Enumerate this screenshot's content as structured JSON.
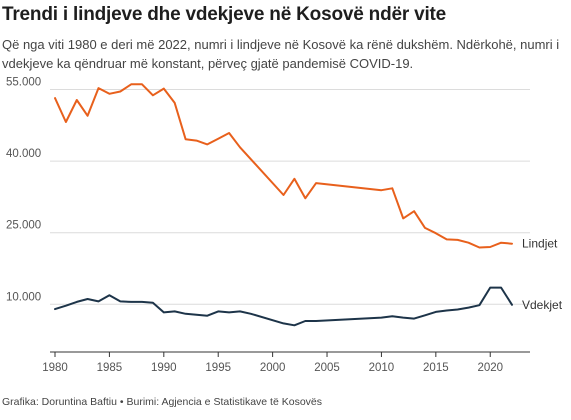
{
  "header": {
    "title": "Trendi i lindjeve dhe vdekjeve në Kosovë ndër vite",
    "subtitle": "Që nga viti 1980 e deri më 2022, numri i lindjeve në Kosovë ka rënë dukshëm. Ndërkohë, numri i vdekjeve ka qëndruar më konstant, përveç gjatë pandemisë COVID-19."
  },
  "footer": {
    "source": "Grafika: Doruntina Baftiu • Burimi: Agjencia e Statistikave të Kosovës"
  },
  "chart_data": {
    "type": "line",
    "title": "Trendi i lindjeve dhe vdekjeve në Kosovë ndër vite",
    "xlabel": "",
    "ylabel": "",
    "xlim": [
      1980,
      2022
    ],
    "ylim": [
      0,
      57000
    ],
    "grid": "horizontal",
    "legend": "inline-right",
    "x_ticks": [
      1980,
      1985,
      1990,
      1995,
      2000,
      2005,
      2010,
      2015,
      2020
    ],
    "y_ticks": [
      {
        "value": 10000,
        "label": "10.000"
      },
      {
        "value": 25000,
        "label": "25.000"
      },
      {
        "value": 40000,
        "label": "40.000"
      },
      {
        "value": 55000,
        "label": "55.000"
      }
    ],
    "series": [
      {
        "name": "Lindjet",
        "color": "#e8601c",
        "points": [
          [
            1980,
            53200
          ],
          [
            1981,
            48200
          ],
          [
            1982,
            52800
          ],
          [
            1983,
            49500
          ],
          [
            1984,
            55300
          ],
          [
            1985,
            54100
          ],
          [
            1986,
            54600
          ],
          [
            1987,
            56100
          ],
          [
            1988,
            56100
          ],
          [
            1989,
            53800
          ],
          [
            1990,
            55200
          ],
          [
            1991,
            52200
          ],
          [
            1992,
            44600
          ],
          [
            1993,
            44300
          ],
          [
            1994,
            43500
          ],
          [
            1995,
            44700
          ],
          [
            1996,
            45900
          ],
          [
            1997,
            42900
          ],
          [
            2001,
            32900
          ],
          [
            2002,
            36300
          ],
          [
            2003,
            32200
          ],
          [
            2004,
            35400
          ],
          [
            2010,
            33900
          ],
          [
            2011,
            34300
          ],
          [
            2012,
            28000
          ],
          [
            2013,
            29500
          ],
          [
            2014,
            26000
          ],
          [
            2015,
            24900
          ],
          [
            2016,
            23600
          ],
          [
            2017,
            23500
          ],
          [
            2018,
            22900
          ],
          [
            2019,
            21900
          ],
          [
            2020,
            22000
          ],
          [
            2021,
            22900
          ],
          [
            2022,
            22700
          ]
        ]
      },
      {
        "name": "Vdekjet",
        "color": "#1d3449",
        "points": [
          [
            1980,
            9000
          ],
          [
            1981,
            9700
          ],
          [
            1982,
            10500
          ],
          [
            1983,
            11100
          ],
          [
            1984,
            10600
          ],
          [
            1985,
            11900
          ],
          [
            1986,
            10600
          ],
          [
            1987,
            10500
          ],
          [
            1988,
            10500
          ],
          [
            1989,
            10300
          ],
          [
            1990,
            8300
          ],
          [
            1991,
            8500
          ],
          [
            1992,
            8000
          ],
          [
            1993,
            7800
          ],
          [
            1994,
            7600
          ],
          [
            1995,
            8500
          ],
          [
            1996,
            8300
          ],
          [
            1997,
            8500
          ],
          [
            1998,
            8000
          ],
          [
            2001,
            6000
          ],
          [
            2002,
            5600
          ],
          [
            2003,
            6500
          ],
          [
            2004,
            6500
          ],
          [
            2010,
            7200
          ],
          [
            2011,
            7500
          ],
          [
            2012,
            7200
          ],
          [
            2013,
            7000
          ],
          [
            2014,
            7700
          ],
          [
            2015,
            8400
          ],
          [
            2016,
            8700
          ],
          [
            2017,
            8900
          ],
          [
            2018,
            9300
          ],
          [
            2019,
            9800
          ],
          [
            2020,
            13500
          ],
          [
            2021,
            13500
          ],
          [
            2022,
            9900
          ]
        ]
      }
    ]
  }
}
